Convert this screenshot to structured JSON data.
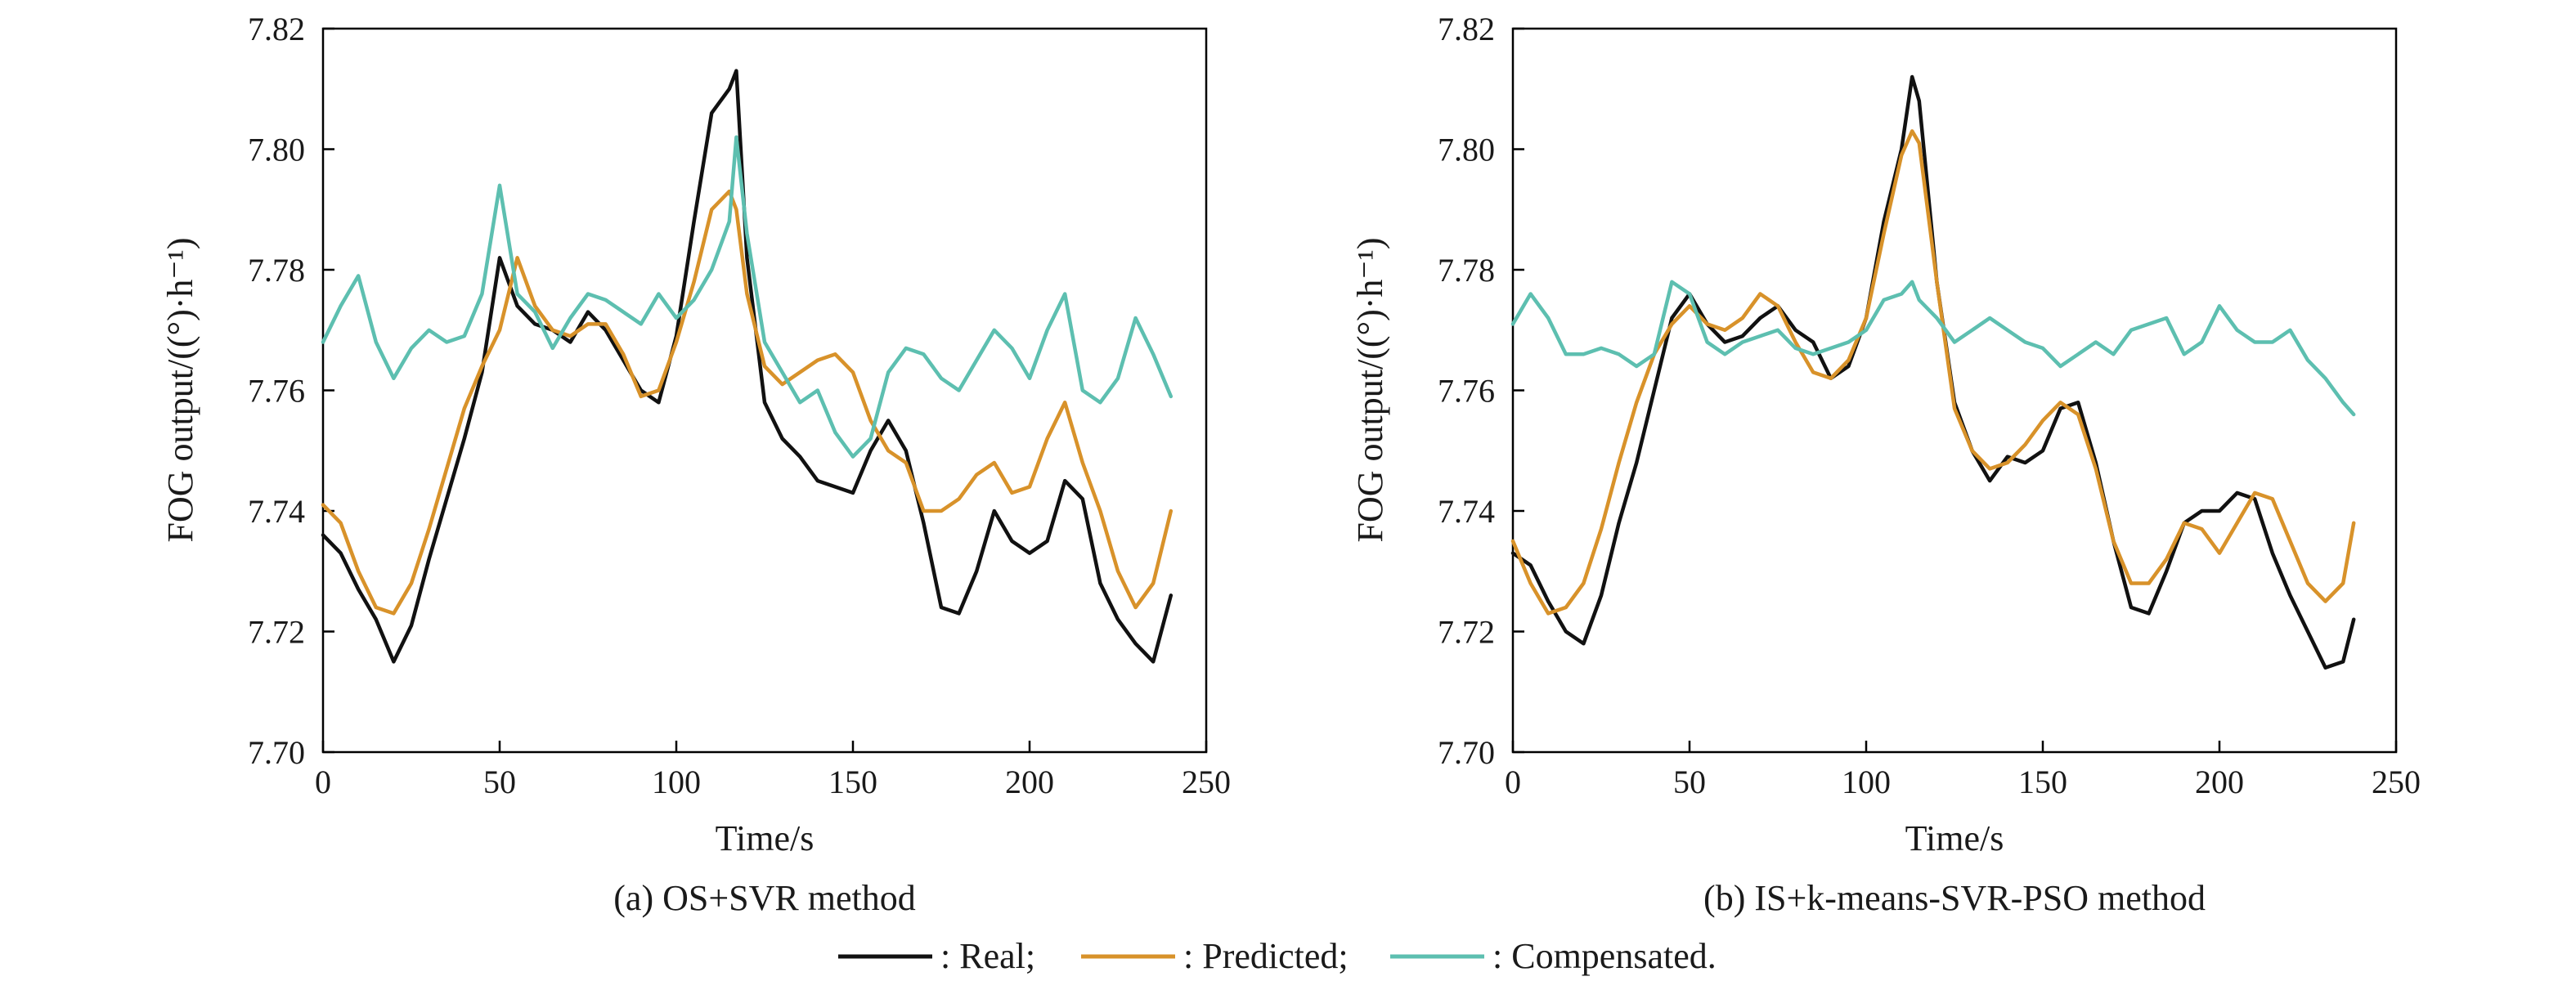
{
  "legend": {
    "items": [
      {
        "key": "real",
        "label": ": Real;",
        "color": "#111111"
      },
      {
        "key": "predicted",
        "label": ": Predicted;",
        "color": "#D8922A"
      },
      {
        "key": "compensated",
        "label": ": Compensated.",
        "color": "#5DBFB0"
      }
    ]
  },
  "chart_data": [
    {
      "type": "line",
      "caption": "(a) OS+SVR method",
      "xlabel": "Time/s",
      "ylabel": "FOG output/((°)·h⁻¹)",
      "xlim": [
        0,
        250
      ],
      "ylim": [
        7.7,
        7.82
      ],
      "xticks": [
        "0",
        "50",
        "100",
        "150",
        "200",
        "250"
      ],
      "yticks": [
        "7.70",
        "7.72",
        "7.74",
        "7.76",
        "7.78",
        "7.80",
        "7.82"
      ],
      "x": [
        0,
        5,
        10,
        15,
        20,
        25,
        30,
        35,
        40,
        45,
        50,
        55,
        60,
        65,
        70,
        75,
        80,
        85,
        90,
        95,
        100,
        105,
        110,
        115,
        117,
        120,
        125,
        130,
        135,
        140,
        145,
        150,
        155,
        160,
        165,
        170,
        175,
        180,
        185,
        190,
        195,
        200,
        205,
        210,
        215,
        220,
        225,
        230,
        235,
        240
      ],
      "series": [
        {
          "name": "Real",
          "color": "#111111",
          "values": [
            7.736,
            7.733,
            7.727,
            7.722,
            7.715,
            7.721,
            7.732,
            7.742,
            7.752,
            7.763,
            7.782,
            7.774,
            7.771,
            7.77,
            7.768,
            7.773,
            7.77,
            7.765,
            7.76,
            7.758,
            7.769,
            7.788,
            7.806,
            7.81,
            7.813,
            7.782,
            7.758,
            7.752,
            7.749,
            7.745,
            7.744,
            7.743,
            7.75,
            7.755,
            7.75,
            7.738,
            7.724,
            7.723,
            7.73,
            7.74,
            7.735,
            7.733,
            7.735,
            7.745,
            7.742,
            7.728,
            7.722,
            7.718,
            7.715,
            7.726
          ]
        },
        {
          "name": "Predicted",
          "color": "#D8922A",
          "values": [
            7.741,
            7.738,
            7.73,
            7.724,
            7.723,
            7.728,
            7.737,
            7.747,
            7.757,
            7.764,
            7.77,
            7.782,
            7.774,
            7.77,
            7.769,
            7.771,
            7.771,
            7.766,
            7.759,
            7.76,
            7.768,
            7.778,
            7.79,
            7.793,
            7.79,
            7.776,
            7.764,
            7.761,
            7.763,
            7.765,
            7.766,
            7.763,
            7.755,
            7.75,
            7.748,
            7.74,
            7.74,
            7.742,
            7.746,
            7.748,
            7.743,
            7.744,
            7.752,
            7.758,
            7.748,
            7.74,
            7.73,
            7.724,
            7.728,
            7.74
          ]
        },
        {
          "name": "Compensated",
          "color": "#5DBFB0",
          "values": [
            7.768,
            7.774,
            7.779,
            7.768,
            7.762,
            7.767,
            7.77,
            7.768,
            7.769,
            7.776,
            7.794,
            7.776,
            7.773,
            7.767,
            7.772,
            7.776,
            7.775,
            7.773,
            7.771,
            7.776,
            7.772,
            7.775,
            7.78,
            7.788,
            7.802,
            7.786,
            7.768,
            7.763,
            7.758,
            7.76,
            7.753,
            7.749,
            7.752,
            7.763,
            7.767,
            7.766,
            7.762,
            7.76,
            7.765,
            7.77,
            7.767,
            7.762,
            7.77,
            7.776,
            7.76,
            7.758,
            7.762,
            7.772,
            7.766,
            7.759
          ]
        }
      ]
    },
    {
      "type": "line",
      "caption": "(b) IS+k-means-SVR-PSO method",
      "xlabel": "Time/s",
      "ylabel": "FOG output/((°)·h⁻¹)",
      "xlim": [
        0,
        250
      ],
      "ylim": [
        7.7,
        7.82
      ],
      "xticks": [
        "0",
        "50",
        "100",
        "150",
        "200",
        "250"
      ],
      "yticks": [
        "7.70",
        "7.72",
        "7.74",
        "7.76",
        "7.78",
        "7.80",
        "7.82"
      ],
      "x": [
        0,
        5,
        10,
        15,
        20,
        25,
        30,
        35,
        40,
        45,
        50,
        55,
        60,
        65,
        70,
        75,
        80,
        85,
        90,
        95,
        100,
        105,
        110,
        113,
        115,
        120,
        125,
        130,
        135,
        140,
        145,
        150,
        155,
        160,
        165,
        170,
        175,
        180,
        185,
        190,
        195,
        200,
        205,
        210,
        215,
        220,
        225,
        230,
        235,
        238
      ],
      "series": [
        {
          "name": "Real",
          "color": "#111111",
          "values": [
            7.733,
            7.731,
            7.725,
            7.72,
            7.718,
            7.726,
            7.738,
            7.748,
            7.76,
            7.772,
            7.776,
            7.771,
            7.768,
            7.769,
            7.772,
            7.774,
            7.77,
            7.768,
            7.762,
            7.764,
            7.772,
            7.788,
            7.8,
            7.812,
            7.808,
            7.778,
            7.758,
            7.75,
            7.745,
            7.749,
            7.748,
            7.75,
            7.757,
            7.758,
            7.748,
            7.735,
            7.724,
            7.723,
            7.73,
            7.738,
            7.74,
            7.74,
            7.743,
            7.742,
            7.733,
            7.726,
            7.72,
            7.714,
            7.715,
            7.722
          ]
        },
        {
          "name": "Predicted",
          "color": "#D8922A",
          "values": [
            7.735,
            7.728,
            7.723,
            7.724,
            7.728,
            7.737,
            7.748,
            7.758,
            7.766,
            7.771,
            7.774,
            7.771,
            7.77,
            7.772,
            7.776,
            7.774,
            7.768,
            7.763,
            7.762,
            7.765,
            7.772,
            7.786,
            7.799,
            7.803,
            7.801,
            7.778,
            7.757,
            7.75,
            7.747,
            7.748,
            7.751,
            7.755,
            7.758,
            7.756,
            7.747,
            7.735,
            7.728,
            7.728,
            7.732,
            7.738,
            7.737,
            7.733,
            7.738,
            7.743,
            7.742,
            7.735,
            7.728,
            7.725,
            7.728,
            7.738
          ]
        },
        {
          "name": "Compensated",
          "color": "#5DBFB0",
          "values": [
            7.771,
            7.776,
            7.772,
            7.766,
            7.766,
            7.767,
            7.766,
            7.764,
            7.766,
            7.778,
            7.776,
            7.768,
            7.766,
            7.768,
            7.769,
            7.77,
            7.767,
            7.766,
            7.767,
            7.768,
            7.77,
            7.775,
            7.776,
            7.778,
            7.775,
            7.772,
            7.768,
            7.77,
            7.772,
            7.77,
            7.768,
            7.767,
            7.764,
            7.766,
            7.768,
            7.766,
            7.77,
            7.771,
            7.772,
            7.766,
            7.768,
            7.774,
            7.77,
            7.768,
            7.768,
            7.77,
            7.765,
            7.762,
            7.758,
            7.756
          ]
        }
      ]
    }
  ]
}
